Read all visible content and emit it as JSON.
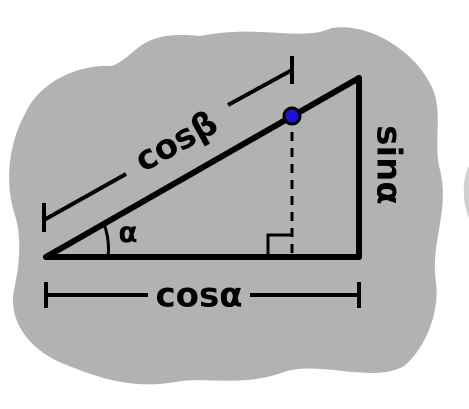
{
  "labels": {
    "hypotenuse_projection": "cosβ",
    "vertical_side": "sinα",
    "angle": "α",
    "base": "cosα"
  },
  "colors": {
    "background_blob": "#b2b2b2",
    "lines": "#000000",
    "point_fill": "#1414d2",
    "page": "#ffffff"
  },
  "icons": {
    "point": "blue-dot-icon",
    "right_angle": "right-angle-marker-icon"
  }
}
